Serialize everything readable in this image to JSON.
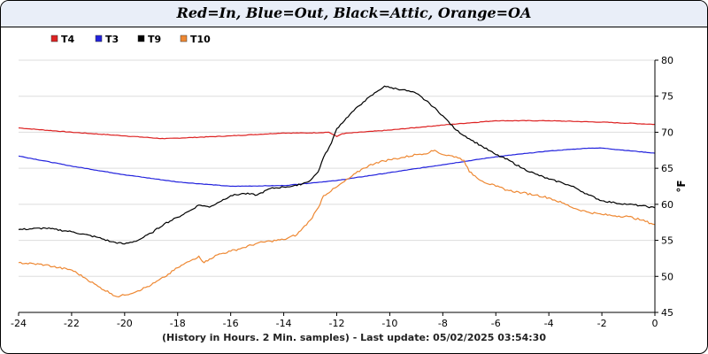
{
  "title": "Red=In, Blue=Out, Black=Attic, Orange=OA",
  "footer": "(History in Hours. 2 Min. samples) - Last update: 05/02/2025 03:54:30",
  "chart_data": {
    "type": "line",
    "ylabel": "°F",
    "xlim": [
      -24,
      0
    ],
    "ylim": [
      45,
      80
    ],
    "x_ticks": [
      -24,
      -22,
      -20,
      -18,
      -16,
      -14,
      -12,
      -10,
      -8,
      -6,
      -4,
      -2,
      0
    ],
    "y_ticks": [
      45,
      50,
      55,
      60,
      65,
      70,
      75,
      80
    ],
    "grid": "horizontal",
    "legend_position": "top-left",
    "series": [
      {
        "name": "T4",
        "color": "#dd2222",
        "x": [
          -24,
          -22,
          -20,
          -18.5,
          -16,
          -14,
          -13,
          -12.3,
          -12,
          -11.8,
          -11.5,
          -10,
          -8,
          -6,
          -4,
          -2,
          0
        ],
        "y": [
          70.6,
          70.0,
          69.5,
          69.1,
          69.5,
          69.9,
          69.9,
          70.0,
          69.4,
          69.8,
          69.9,
          70.3,
          71.0,
          71.6,
          71.6,
          71.4,
          71.1
        ]
      },
      {
        "name": "T3",
        "color": "#2222dd",
        "x": [
          -24,
          -22,
          -20,
          -18,
          -16,
          -14,
          -12,
          -10,
          -8,
          -6,
          -4,
          -2.5,
          -2,
          0
        ],
        "y": [
          66.7,
          65.3,
          64.1,
          63.1,
          62.5,
          62.6,
          63.3,
          64.4,
          65.5,
          66.6,
          67.4,
          67.8,
          67.8,
          67.1
        ]
      },
      {
        "name": "T9",
        "color": "#000000",
        "x": [
          -24,
          -23,
          -22,
          -21,
          -20.5,
          -20,
          -19.5,
          -19,
          -18.5,
          -18,
          -17.5,
          -17.2,
          -17,
          -16.8,
          -16.5,
          -16,
          -15.5,
          -15,
          -14.5,
          -14,
          -13.5,
          -13,
          -12.7,
          -12.5,
          -12.2,
          -12,
          -11.5,
          -11,
          -10.5,
          -10.2,
          -10,
          -9.5,
          -9,
          -8.5,
          -8,
          -7.5,
          -7,
          -6.5,
          -6,
          -5.5,
          -5,
          -4.5,
          -4,
          -3.5,
          -3,
          -2.5,
          -2,
          -1.5,
          -1,
          -0.5,
          0
        ],
        "y": [
          56.5,
          56.7,
          56.2,
          55.4,
          54.8,
          54.5,
          55.0,
          56.0,
          57.3,
          58.2,
          59.2,
          59.9,
          59.8,
          59.6,
          60.2,
          61.2,
          61.5,
          61.3,
          62.2,
          62.4,
          62.6,
          63.3,
          64.5,
          66.5,
          68.5,
          70.5,
          72.5,
          74.2,
          75.6,
          76.4,
          76.2,
          75.9,
          75.4,
          74.0,
          72.3,
          70.3,
          69.1,
          68.0,
          66.9,
          66.1,
          65.0,
          64.2,
          63.5,
          63.0,
          62.3,
          61.3,
          60.5,
          60.2,
          60.0,
          59.8,
          59.5
        ]
      },
      {
        "name": "T10",
        "color": "#ee8833",
        "x": [
          -24,
          -23,
          -22.5,
          -22,
          -21.5,
          -21,
          -20.5,
          -20.3,
          -20,
          -19.5,
          -19,
          -18.5,
          -18,
          -17.5,
          -17.2,
          -17,
          -16.8,
          -16.5,
          -16,
          -15.5,
          -15,
          -14.5,
          -14,
          -13.5,
          -13,
          -12.7,
          -12.5,
          -12,
          -11.5,
          -11,
          -10.5,
          -10,
          -9.5,
          -9,
          -8.5,
          -8.3,
          -8,
          -7.5,
          -7.2,
          -7,
          -6.5,
          -6,
          -5.5,
          -5,
          -4.5,
          -4,
          -3.5,
          -3,
          -2.5,
          -2,
          -1.5,
          -1,
          -0.5,
          0
        ],
        "y": [
          51.9,
          51.6,
          51.2,
          50.9,
          49.8,
          48.6,
          47.6,
          47.2,
          47.4,
          48.0,
          48.8,
          49.9,
          51.2,
          52.2,
          52.8,
          51.9,
          52.4,
          53.0,
          53.5,
          54.0,
          54.6,
          54.9,
          55.1,
          55.8,
          57.8,
          59.5,
          61.2,
          62.4,
          63.7,
          65.0,
          65.8,
          66.2,
          66.5,
          66.9,
          67.2,
          67.5,
          66.9,
          66.6,
          66.1,
          64.5,
          63.2,
          62.5,
          61.9,
          61.6,
          61.3,
          60.9,
          60.2,
          59.4,
          58.9,
          58.6,
          58.4,
          58.3,
          57.8,
          57.2
        ]
      }
    ]
  }
}
